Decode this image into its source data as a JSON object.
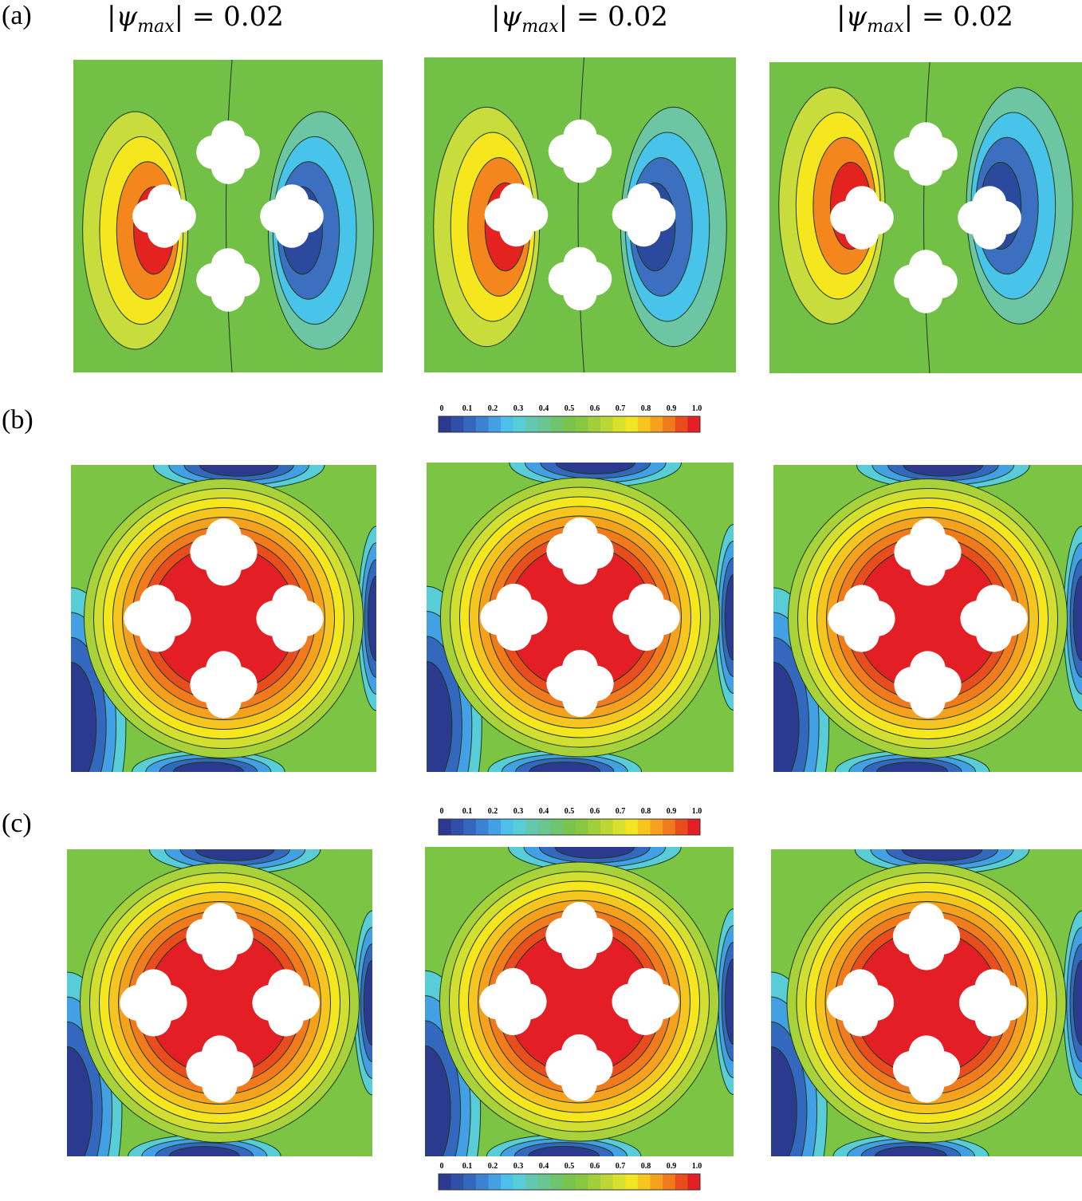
{
  "panel_labels": [
    "(a)",
    "(b)",
    "(c)"
  ],
  "row_a_titles": [
    {
      "lead": "|ψ",
      "sub": "max",
      "tail": "| = 0.02"
    },
    {
      "lead": "|ψ",
      "sub": "max",
      "tail": "| = 0.02"
    },
    {
      "lead": "|ψ",
      "sub": "max",
      "tail": "| = 0.02"
    }
  ],
  "colorbar": {
    "ticks": [
      "0",
      "0.1",
      "0.2",
      "0.3",
      "0.4",
      "0.5",
      "0.6",
      "0.7",
      "0.8",
      "0.9",
      "1.0"
    ],
    "colors": [
      "#2b3a8f",
      "#2f4fa8",
      "#3468bf",
      "#3b82d4",
      "#43a0e4",
      "#4cc0ea",
      "#58cdd8",
      "#62c8b0",
      "#69c690",
      "#6fc46e",
      "#78c44c",
      "#88c840",
      "#a0cf3a",
      "#bcd734",
      "#d8e02e",
      "#f2e524",
      "#f7c51f",
      "#f5a11d",
      "#f07a1c",
      "#e94d1d",
      "#e31e24"
    ]
  }
}
